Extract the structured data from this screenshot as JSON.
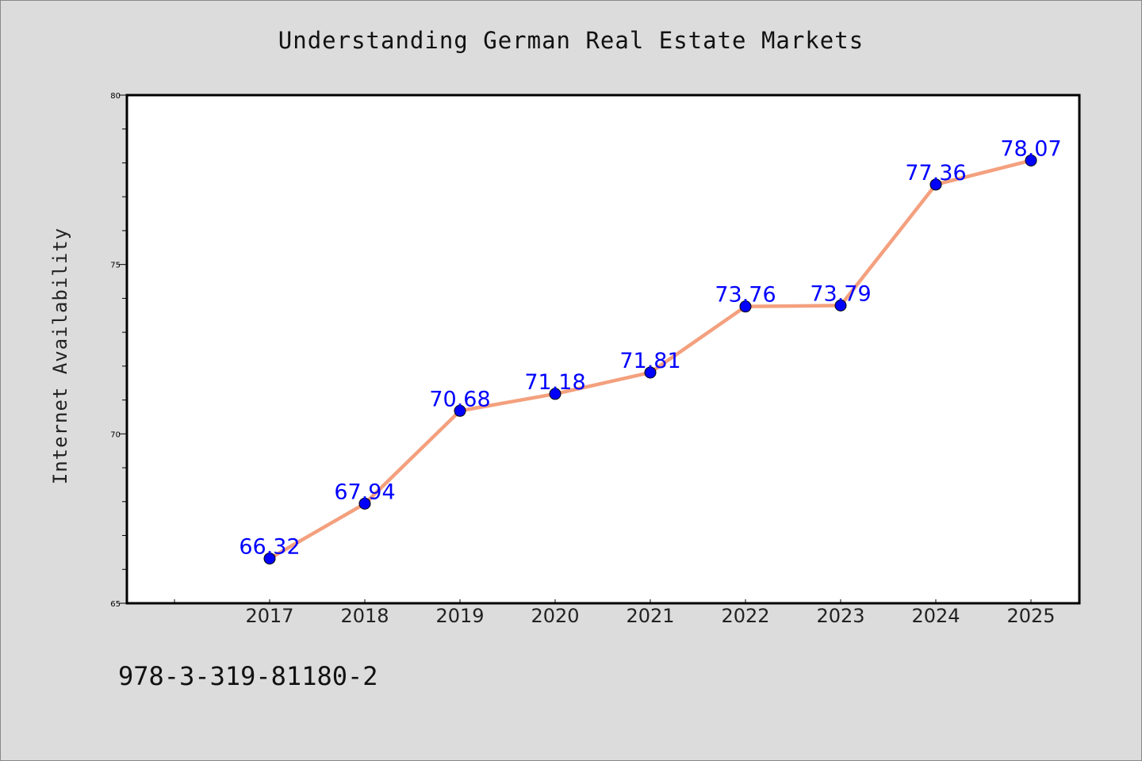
{
  "chart_data": {
    "type": "line",
    "title": "Understanding German Real Estate Markets",
    "xlabel": "",
    "ylabel": "Internet Availability",
    "categories": [
      "2017",
      "2018",
      "2019",
      "2020",
      "2021",
      "2022",
      "2023",
      "2024",
      "2025"
    ],
    "values": [
      66.32,
      67.94,
      70.68,
      71.18,
      71.81,
      73.76,
      73.79,
      77.36,
      78.07
    ],
    "data_labels": [
      "66.32",
      "67.94",
      "70.68",
      "71.18",
      "71.81",
      "73.76",
      "73.79",
      "77.36",
      "78.07"
    ],
    "ylim": [
      65,
      80
    ],
    "y_ticks": [
      "65",
      "70",
      "75",
      "80"
    ],
    "grid": false,
    "line_color": "#f4a07e",
    "marker_color": "#0000ff",
    "label_color": "#0000ff"
  },
  "footer": {
    "code": "978-3-319-81180-2"
  }
}
